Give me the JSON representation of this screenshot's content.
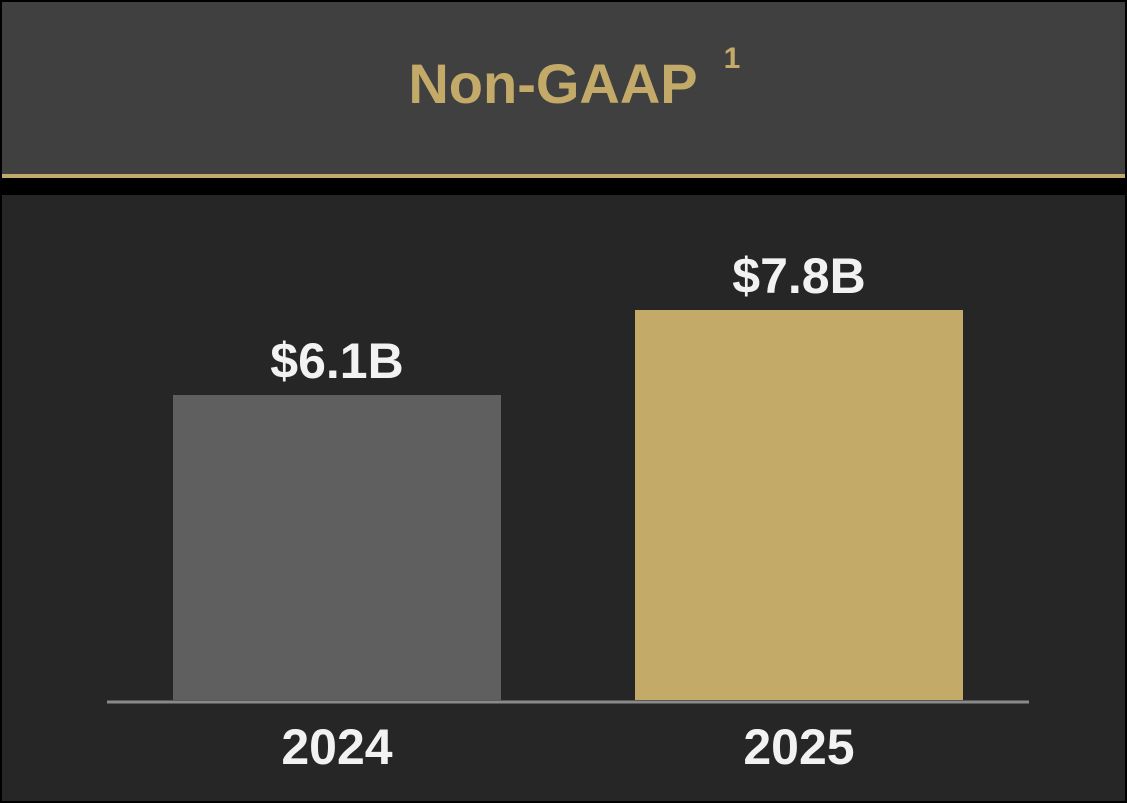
{
  "chart_data": {
    "type": "bar",
    "title": "Non-GAAP",
    "title_superscript": "1",
    "categories": [
      "2024",
      "2025"
    ],
    "values": [
      6.1,
      7.8
    ],
    "value_labels": [
      "$6.1B",
      "$7.8B"
    ],
    "colors": [
      "#5f5f5f",
      "#c4aa69"
    ]
  }
}
